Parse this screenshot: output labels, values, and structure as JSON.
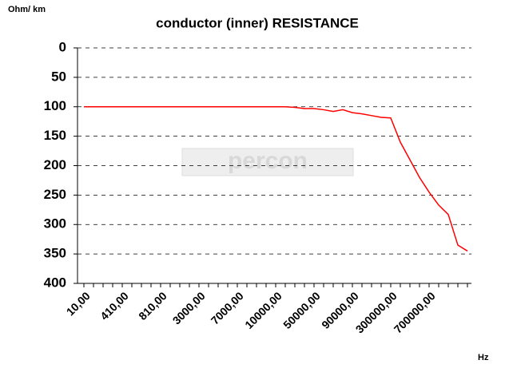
{
  "chart_data": {
    "type": "line",
    "title": "conductor  (inner) RESISTANCE",
    "ylabel": "Ohm/ km",
    "xlabel": "Hz",
    "watermark": "percon",
    "categories": [
      "10,00",
      null,
      null,
      null,
      "410,00",
      null,
      null,
      null,
      "810,00",
      null,
      null,
      null,
      "3000,00",
      null,
      null,
      null,
      "7000,00",
      null,
      null,
      null,
      "10000,00",
      null,
      null,
      null,
      "50000,00",
      null,
      null,
      null,
      "90000,00",
      null,
      null,
      null,
      "300000,00",
      null,
      null,
      null,
      "700000,00",
      null,
      null,
      null,
      null
    ],
    "series": [
      {
        "name": "resistance",
        "color": "#ff0000",
        "values": [
          100,
          100,
          100,
          100,
          100,
          100,
          100,
          100,
          100,
          100,
          100,
          100,
          100,
          100,
          100,
          100,
          100,
          100,
          100,
          100,
          100,
          100,
          101,
          103,
          103,
          105,
          108,
          105,
          110,
          112,
          115,
          118,
          119,
          160,
          190,
          220,
          245,
          267,
          283,
          335,
          345
        ]
      }
    ],
    "ylim": [
      0,
      400
    ],
    "yticks": [
      0,
      50,
      100,
      150,
      200,
      250,
      300,
      350,
      400
    ],
    "y_inverted": true,
    "grid": true
  }
}
